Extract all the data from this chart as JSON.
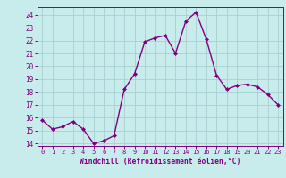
{
  "x": [
    0,
    1,
    2,
    3,
    4,
    5,
    6,
    7,
    8,
    9,
    10,
    11,
    12,
    13,
    14,
    15,
    16,
    17,
    18,
    19,
    20,
    21,
    22,
    23
  ],
  "y": [
    15.8,
    15.1,
    15.3,
    15.7,
    15.1,
    14.0,
    14.2,
    14.6,
    18.2,
    19.4,
    21.9,
    22.2,
    22.4,
    21.0,
    23.5,
    24.2,
    22.1,
    19.3,
    18.2,
    18.5,
    18.6,
    18.4,
    17.8,
    17.0
  ],
  "color": "#800080",
  "bg_color": "#c8ecec",
  "grid_color": "#a8d0d0",
  "xlabel": "Windchill (Refroidissement éolien,°C)",
  "xlabel_color": "#800080",
  "tick_color": "#800080",
  "ylim": [
    13.8,
    24.6
  ],
  "xlim": [
    -0.5,
    23.5
  ],
  "yticks": [
    14,
    15,
    16,
    17,
    18,
    19,
    20,
    21,
    22,
    23,
    24
  ],
  "xticks": [
    0,
    1,
    2,
    3,
    4,
    5,
    6,
    7,
    8,
    9,
    10,
    11,
    12,
    13,
    14,
    15,
    16,
    17,
    18,
    19,
    20,
    21,
    22,
    23
  ],
  "marker": "D",
  "marker_size": 2.0,
  "line_width": 1.0
}
